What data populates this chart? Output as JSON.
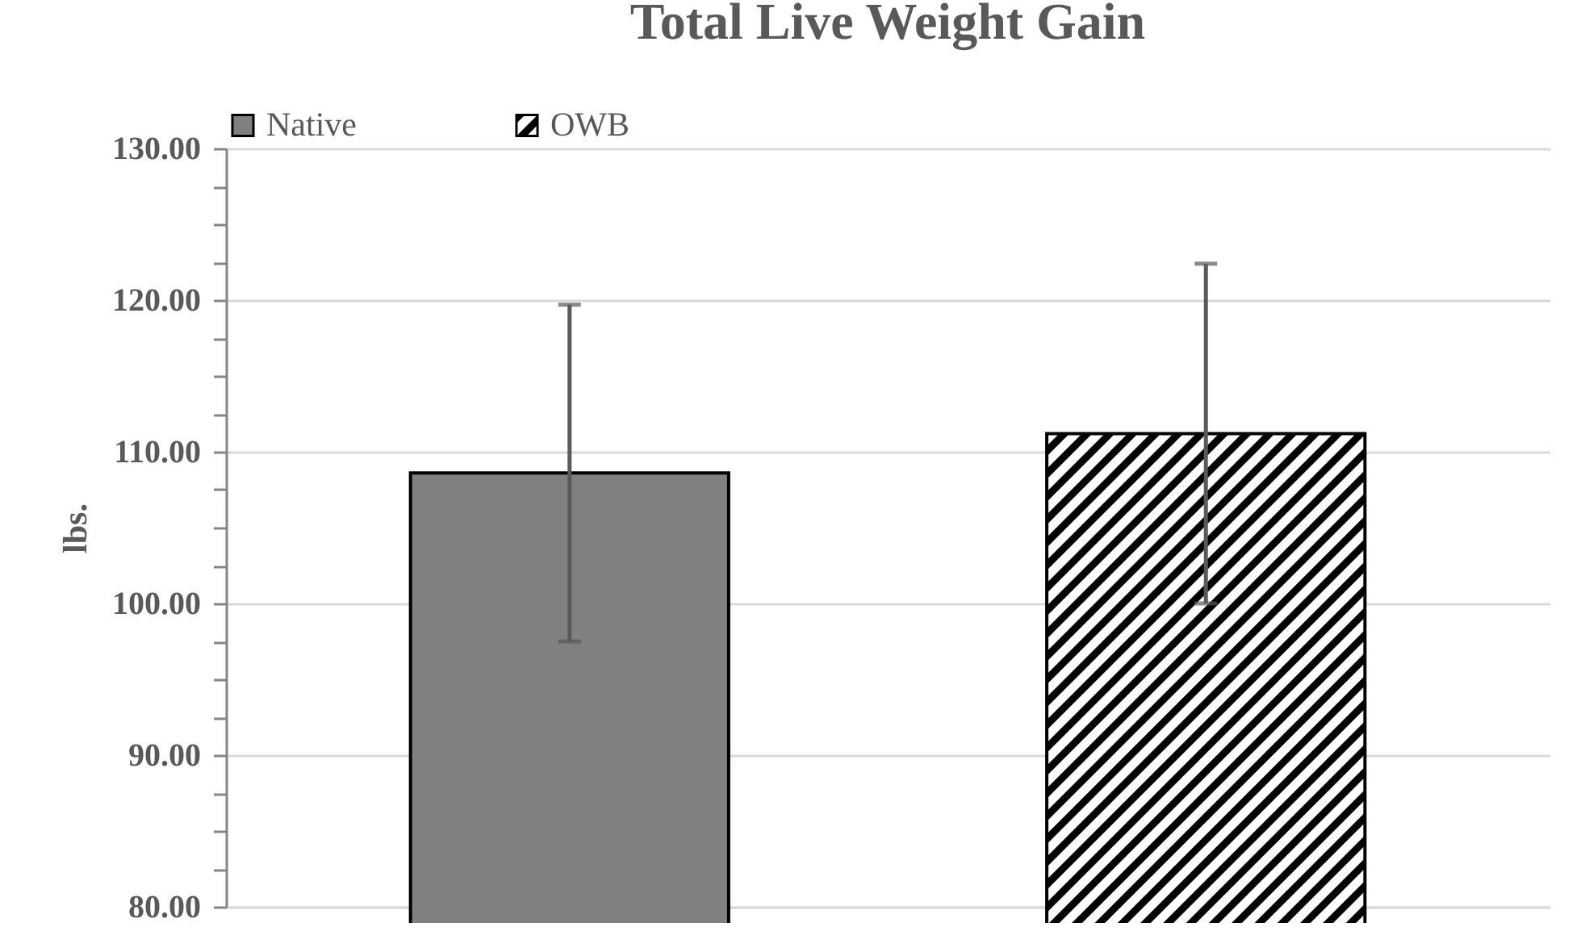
{
  "chart_data": {
    "type": "bar",
    "title": "Total Live Weight Gain",
    "ylabel": "lbs.",
    "categories": [
      null
    ],
    "series": [
      {
        "name": "Native",
        "color": "#808080",
        "values": [
          108.6
        ],
        "errors": [
          11.1
        ]
      },
      {
        "name": "OWB",
        "color": "#000000",
        "values": [
          111.2
        ],
        "errors": [
          11.2
        ]
      }
    ],
    "ylim": [
      80,
      130
    ],
    "yticks": [
      {
        "value": 80,
        "label": "80.00"
      },
      {
        "value": 82.5,
        "label": null
      },
      {
        "value": 85,
        "label": null
      },
      {
        "value": 87.5,
        "label": null
      },
      {
        "value": 90,
        "label": "90.00"
      },
      {
        "value": 92.5,
        "label": null
      },
      {
        "value": 95,
        "label": null
      },
      {
        "value": 97.5,
        "label": null
      },
      {
        "value": 100,
        "label": "100.00"
      },
      {
        "value": 102.5,
        "label": null
      },
      {
        "value": 105,
        "label": null
      },
      {
        "value": 107.5,
        "label": null
      },
      {
        "value": 110,
        "label": "110.00"
      },
      {
        "value": 112.5,
        "label": null
      },
      {
        "value": 115,
        "label": null
      },
      {
        "value": 117.5,
        "label": null
      },
      {
        "value": 120,
        "label": "120.00"
      },
      {
        "value": 122.5,
        "label": null
      },
      {
        "value": 125,
        "label": null
      },
      {
        "value": 127.5,
        "label": null
      },
      {
        "value": 130,
        "label": "130.00"
      }
    ],
    "grid": "y",
    "legend": "top",
    "tick_labels": "y"
  }
}
